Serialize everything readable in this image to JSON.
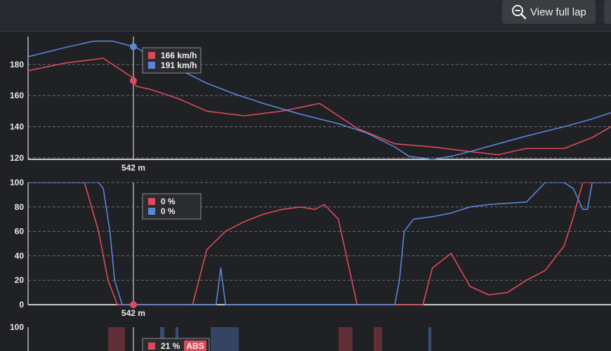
{
  "toolbar": {
    "zoom_label": "View full lap",
    "zoom_icon": "magnifier-minus-icon"
  },
  "colors": {
    "series_a": "#dc4a5c",
    "series_b": "#5b86d6",
    "axis": "#ffffff",
    "grid": "#6a6d72",
    "cursor": "#aaaaaa",
    "abs_badge": "#dc4a5c"
  },
  "cursor": {
    "distance_label": "542 m",
    "x": 542
  },
  "panels": [
    {
      "id": "speed",
      "tooltip": [
        "166 km/h",
        "191 km/h"
      ],
      "badge": null
    },
    {
      "id": "throttle",
      "tooltip": [
        "0 %",
        "0 %"
      ],
      "badge": null
    },
    {
      "id": "brake",
      "tooltip": [
        "21 %"
      ],
      "badge": "ABS"
    }
  ],
  "chart_data": [
    {
      "type": "line",
      "panel": "speed",
      "xlabel": "",
      "ylabel": "",
      "x_range": [
        430,
        1050
      ],
      "ylim": [
        119,
        198
      ],
      "yticks": [
        120,
        140,
        160,
        180
      ],
      "grid": true,
      "series": [
        {
          "color": "#dc4a5c",
          "x": [
            430,
            470,
            510,
            540,
            545,
            560,
            590,
            620,
            660,
            700,
            740,
            760,
            780,
            820,
            860,
            900,
            930,
            960,
            1000,
            1030,
            1050
          ],
          "y": [
            176,
            181,
            184,
            172,
            166,
            164,
            158,
            150,
            147,
            150,
            155,
            147,
            139,
            129,
            127,
            124,
            122,
            126,
            126,
            133,
            140
          ]
        },
        {
          "color": "#5b86d6",
          "x": [
            430,
            470,
            500,
            520,
            545,
            560,
            590,
            620,
            650,
            680,
            720,
            760,
            790,
            820,
            835,
            860,
            880,
            900,
            930,
            960,
            1000,
            1030,
            1050
          ],
          "y": [
            185,
            191,
            195,
            195,
            191,
            185,
            177,
            168,
            161,
            155,
            148,
            142,
            136,
            127,
            121,
            119,
            121,
            124,
            129,
            134,
            140,
            145,
            149
          ]
        }
      ]
    },
    {
      "type": "line",
      "panel": "throttle",
      "xlabel": "",
      "ylabel": "",
      "x_range": [
        430,
        1050
      ],
      "ylim": [
        0,
        100
      ],
      "yticks": [
        0,
        20,
        40,
        60,
        80,
        100
      ],
      "grid": true,
      "series": [
        {
          "color": "#dc4a5c",
          "x": [
            430,
            490,
            505,
            515,
            525,
            530,
            540,
            600,
            605,
            620,
            640,
            660,
            680,
            700,
            720,
            735,
            745,
            760,
            780,
            800,
            820,
            840,
            850,
            860,
            880,
            900,
            920,
            940,
            960,
            980,
            1000,
            1010,
            1020,
            1050
          ],
          "y": [
            100,
            100,
            60,
            20,
            0,
            0,
            0,
            0,
            0,
            45,
            60,
            68,
            74,
            78,
            80,
            78,
            82,
            70,
            0,
            0,
            0,
            0,
            0,
            30,
            42,
            15,
            8,
            10,
            20,
            28,
            48,
            72,
            100,
            100
          ]
        },
        {
          "color": "#5b86d6",
          "x": [
            430,
            505,
            510,
            517,
            522,
            530,
            540,
            600,
            630,
            635,
            640,
            700,
            820,
            825,
            830,
            840,
            860,
            880,
            900,
            920,
            940,
            960,
            980,
            990,
            1000,
            1010,
            1020,
            1025,
            1030,
            1050
          ],
          "y": [
            100,
            100,
            95,
            60,
            20,
            0,
            0,
            0,
            0,
            30,
            0,
            0,
            0,
            20,
            60,
            70,
            72,
            75,
            80,
            82,
            83,
            84,
            100,
            100,
            100,
            95,
            78,
            78,
            100,
            100
          ]
        }
      ]
    }
  ]
}
